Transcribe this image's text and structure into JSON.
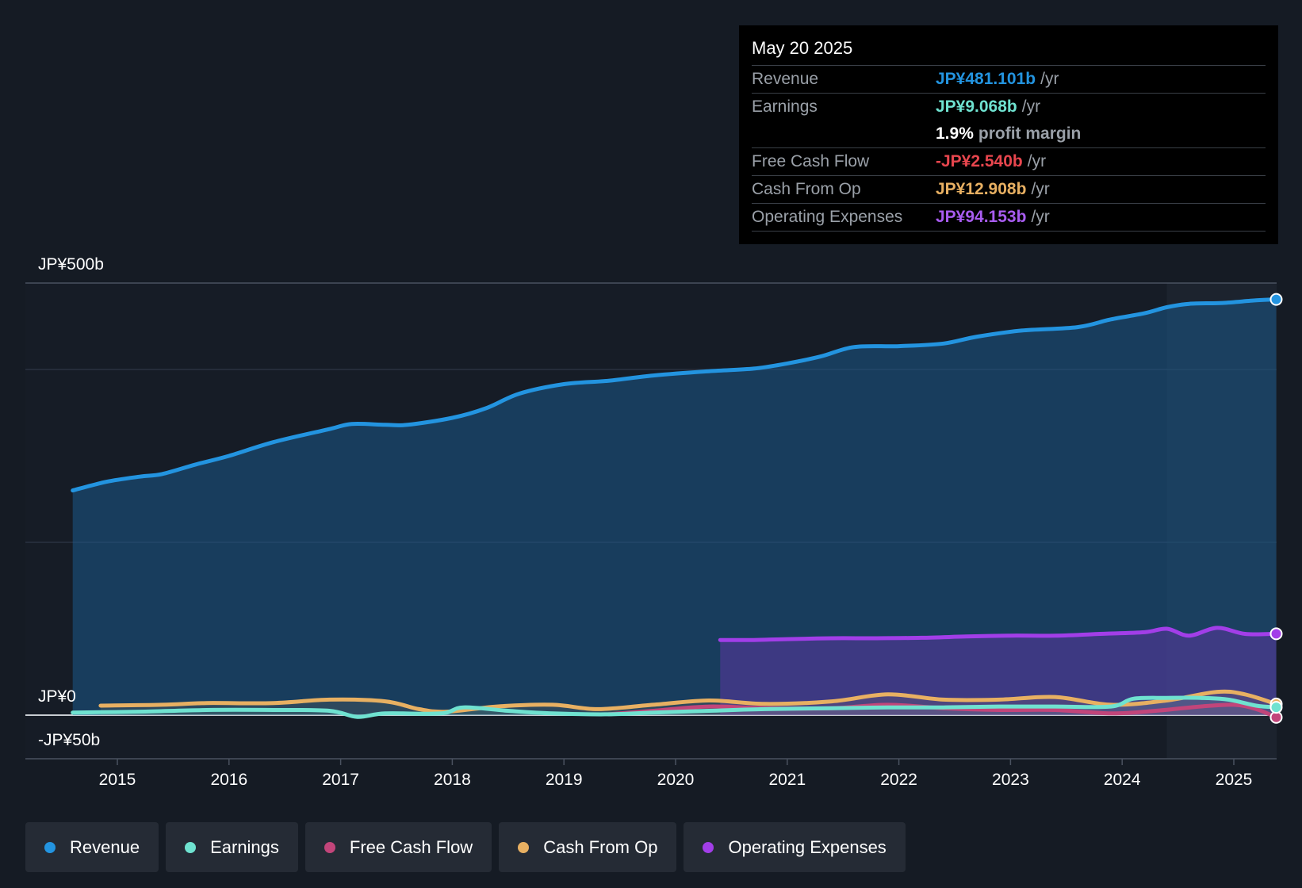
{
  "colors": {
    "revenue": "#2394e0",
    "earnings": "#6fe2d0",
    "free_cash_flow": "#c2457a",
    "cash_from_op": "#e8b062",
    "operating_expenses": "#a23ee8"
  },
  "tooltip": {
    "date": "May 20 2025",
    "rows": [
      {
        "label": "Revenue",
        "value": "JP¥481.101b",
        "unit": "/yr"
      },
      {
        "label": "Earnings",
        "value": "JP¥9.068b",
        "unit": "/yr"
      },
      {
        "label": "",
        "value": "1.9%",
        "unit": "profit margin"
      },
      {
        "label": "Free Cash Flow",
        "value": "-JP¥2.540b",
        "unit": "/yr"
      },
      {
        "label": "Cash From Op",
        "value": "JP¥12.908b",
        "unit": "/yr"
      },
      {
        "label": "Operating Expenses",
        "value": "JP¥94.153b",
        "unit": "/yr"
      }
    ]
  },
  "legend": [
    {
      "label": "Revenue",
      "color": "#2394e0"
    },
    {
      "label": "Earnings",
      "color": "#6fe2d0"
    },
    {
      "label": "Free Cash Flow",
      "color": "#c2457a"
    },
    {
      "label": "Cash From Op",
      "color": "#e8b062"
    },
    {
      "label": "Operating Expenses",
      "color": "#a23ee8"
    }
  ],
  "chart_data": {
    "type": "area",
    "title": "",
    "xlabel": "",
    "ylabel": "",
    "y_tick_labels": [
      "JP¥500b",
      "JP¥0",
      "-JP¥50b"
    ],
    "ylim": [
      -50,
      500
    ],
    "xlim": [
      2014.0,
      2025.4
    ],
    "x_ticks": [
      2015,
      2016,
      2017,
      2018,
      2019,
      2020,
      2021,
      2022,
      2023,
      2024,
      2025
    ],
    "x_tick_labels": [
      "2015",
      "2016",
      "2017",
      "2018",
      "2019",
      "2020",
      "2021",
      "2022",
      "2023",
      "2024",
      "2025"
    ],
    "highlight_start": 2024.4,
    "series": [
      {
        "name": "Revenue",
        "key": "revenue",
        "x": [
          2014.6,
          2014.9,
          2015.2,
          2015.4,
          2015.7,
          2016.0,
          2016.4,
          2016.9,
          2017.1,
          2017.4,
          2017.6,
          2018.0,
          2018.3,
          2018.6,
          2019.0,
          2019.4,
          2019.8,
          2020.3,
          2020.7,
          2021.0,
          2021.3,
          2021.6,
          2022.0,
          2022.4,
          2022.7,
          2023.1,
          2023.6,
          2023.9,
          2024.2,
          2024.4,
          2024.6,
          2024.9,
          2025.2,
          2025.38
        ],
        "y": [
          260,
          270,
          276,
          279,
          290,
          300,
          316,
          331,
          337,
          336,
          336,
          344,
          355,
          372,
          383,
          387,
          393,
          398,
          401,
          407,
          415,
          426,
          427,
          430,
          438,
          445,
          449,
          458,
          465,
          472,
          476,
          477,
          480,
          481.101
        ]
      },
      {
        "name": "Operating Expenses",
        "key": "operating_expenses",
        "x": [
          2020.4,
          2020.7,
          2021.0,
          2021.4,
          2021.8,
          2022.2,
          2022.6,
          2023.0,
          2023.4,
          2023.8,
          2024.2,
          2024.4,
          2024.6,
          2024.85,
          2025.1,
          2025.38
        ],
        "y": [
          87,
          87,
          88,
          89,
          89,
          89.5,
          91,
          92,
          92,
          94,
          96,
          100,
          92,
          101,
          94,
          94.153
        ]
      },
      {
        "name": "Cash From Op",
        "key": "cash_from_op",
        "x": [
          2014.85,
          2015.4,
          2015.8,
          2016.4,
          2016.9,
          2017.4,
          2017.7,
          2017.95,
          2018.4,
          2018.9,
          2019.3,
          2019.8,
          2020.3,
          2020.8,
          2021.4,
          2021.9,
          2022.4,
          2022.9,
          2023.4,
          2023.9,
          2024.4,
          2024.85,
          2025.1,
          2025.38
        ],
        "y": [
          11,
          12,
          14,
          14,
          18,
          16,
          7,
          4,
          10,
          12,
          7,
          12,
          17,
          13,
          16,
          24,
          18,
          18,
          21,
          12,
          17,
          27,
          24,
          12.908
        ]
      },
      {
        "name": "Free Cash Flow",
        "key": "free_cash_flow",
        "x": [
          2019.4,
          2019.8,
          2020.3,
          2020.8,
          2021.4,
          2021.9,
          2022.4,
          2022.9,
          2023.4,
          2023.9,
          2024.3,
          2024.7,
          2025.0,
          2025.2,
          2025.38
        ],
        "y": [
          1,
          5,
          10,
          8,
          8,
          12,
          8,
          6,
          6,
          2,
          5,
          10,
          12,
          7,
          -2.54
        ]
      },
      {
        "name": "Earnings",
        "key": "earnings",
        "x": [
          2014.6,
          2015.2,
          2015.8,
          2016.4,
          2016.9,
          2017.15,
          2017.4,
          2017.9,
          2018.1,
          2018.5,
          2018.9,
          2019.4,
          2019.8,
          2020.3,
          2020.8,
          2021.4,
          2021.9,
          2022.4,
          2022.9,
          2023.4,
          2023.9,
          2024.1,
          2024.4,
          2024.7,
          2024.95,
          2025.2,
          2025.38
        ],
        "y": [
          3,
          4,
          6,
          6,
          5,
          -2,
          2,
          2,
          9,
          5,
          2,
          1,
          3,
          5,
          7,
          8,
          9,
          9,
          10,
          10,
          10,
          19,
          20,
          20,
          18,
          11,
          9.068
        ]
      }
    ]
  }
}
